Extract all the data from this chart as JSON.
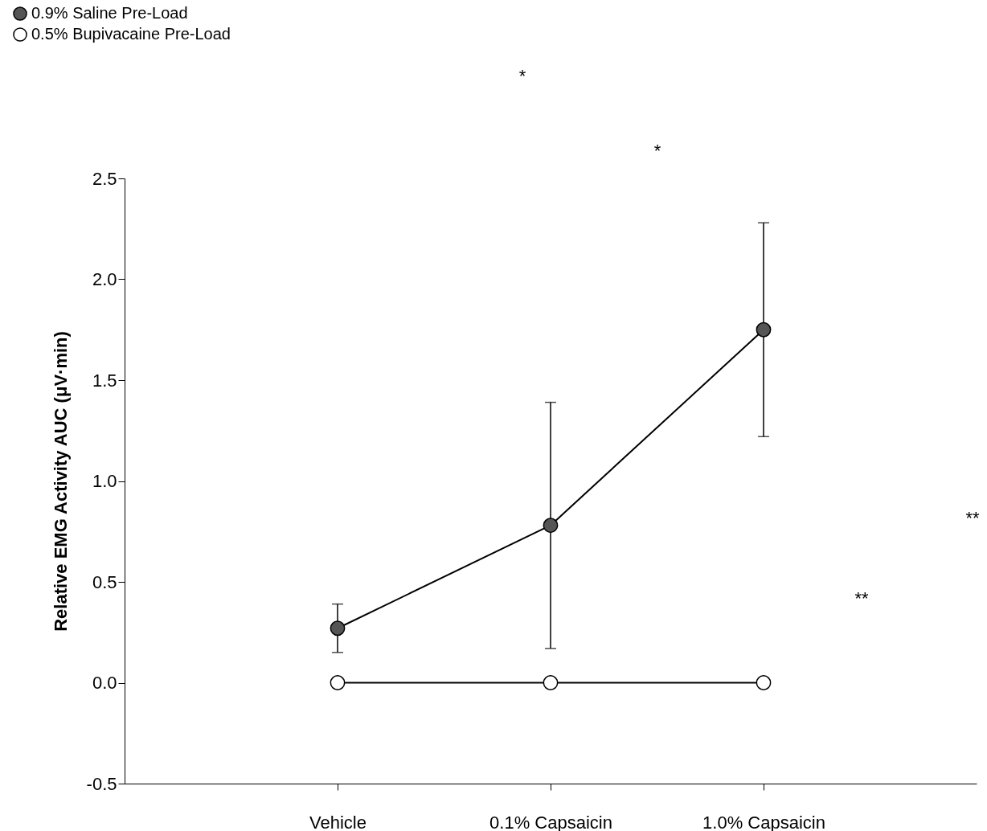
{
  "chart_data": {
    "type": "line",
    "ylabel": "Relative EMG Activity AUC (μV·min)",
    "categories": [
      "Vehicle",
      "0.1% Capsaicin",
      "1.0% Capsaicin"
    ],
    "series": [
      {
        "name": "0.9% Saline Pre-Load",
        "color": "#555555",
        "values": [
          0.27,
          0.78,
          1.75
        ],
        "errors": [
          0.12,
          0.61,
          0.53
        ]
      },
      {
        "name": "0.5% Bupivacaine Pre-Load",
        "color": "#ffffff",
        "values": [
          0,
          0,
          0
        ]
      }
    ],
    "ylim": [
      -0.5,
      2.5
    ],
    "yticks": [
      -0.5,
      {
        "value": 0,
        "label": "0.0"
      },
      0.5,
      {
        "value": 1,
        "label": "1.0"
      },
      1.5,
      {
        "value": 2,
        "label": "2.0"
      },
      2.5
    ],
    "grid": false,
    "legend": "top left",
    "marker": "circle",
    "line_style": "solid",
    "annotations": [
      "*",
      "*",
      "**",
      "**"
    ]
  }
}
